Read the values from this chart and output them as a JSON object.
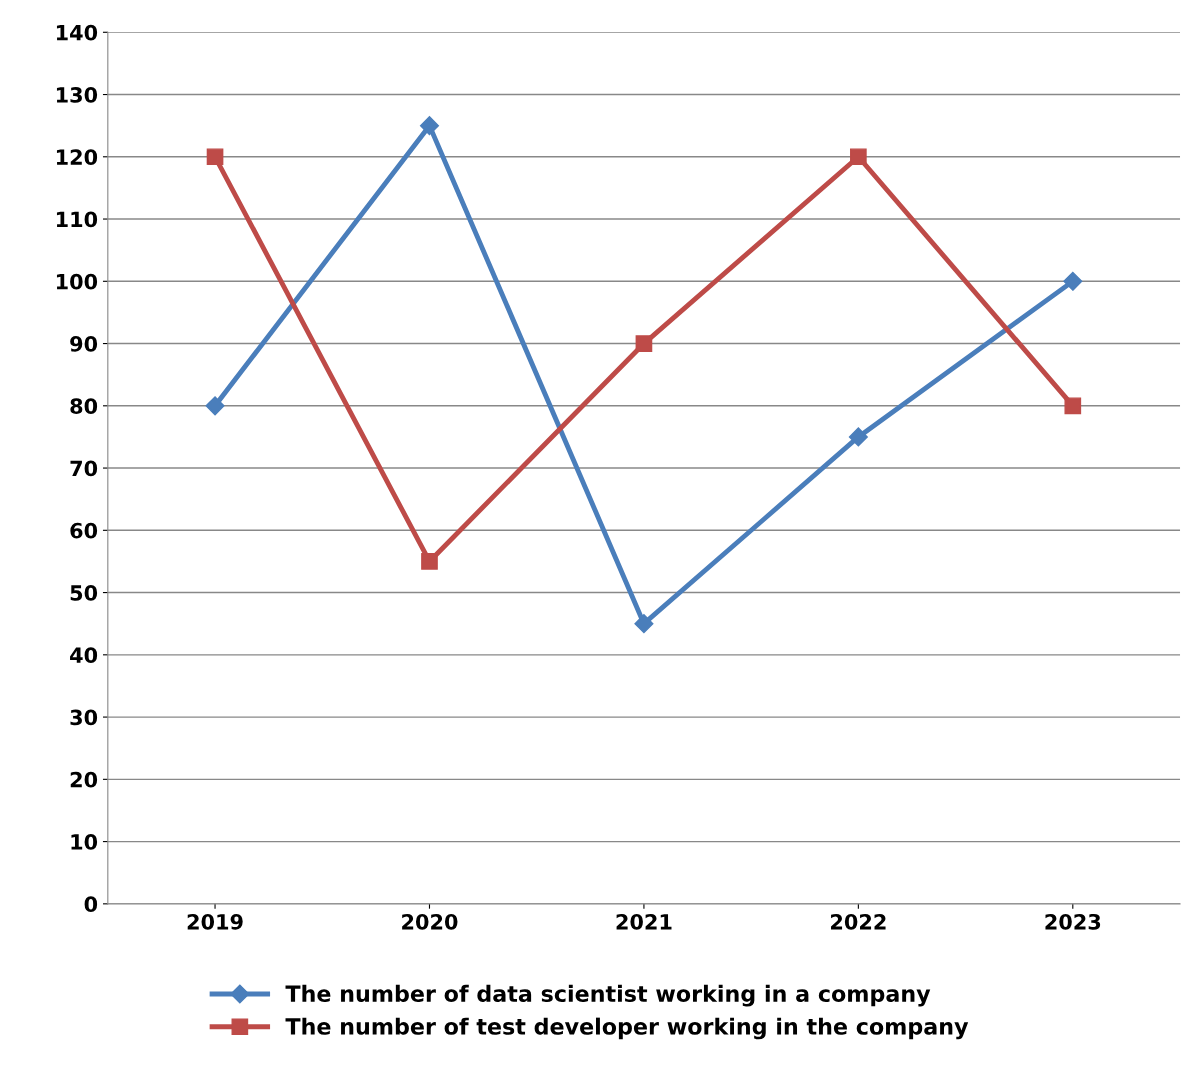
{
  "chart_data": {
    "type": "line",
    "categories": [
      "2019",
      "2020",
      "2021",
      "2022",
      "2023"
    ],
    "series": [
      {
        "name": "The number of data scientist working in a company",
        "color": "#4a7ebb",
        "marker": "diamond",
        "values": [
          80,
          125,
          45,
          75,
          100
        ]
      },
      {
        "name": "The number of test developer working in the company",
        "color": "#be4b48",
        "marker": "square",
        "values": [
          120,
          55,
          90,
          120,
          80
        ]
      }
    ],
    "ylim": [
      0,
      140
    ],
    "yticks": [
      0,
      10,
      20,
      30,
      40,
      50,
      60,
      70,
      80,
      90,
      100,
      110,
      120,
      130,
      140
    ],
    "grid": "y",
    "legend": "bottom",
    "line_style": "solid"
  }
}
